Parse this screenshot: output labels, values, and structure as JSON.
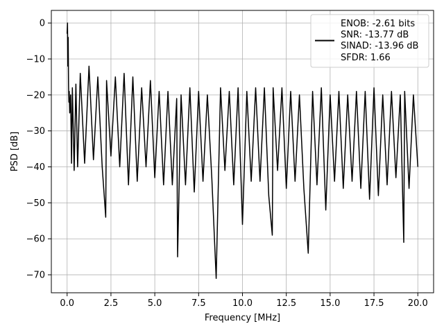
{
  "chart_data": {
    "type": "line",
    "title": "",
    "xlabel": "Frequency [MHz]",
    "ylabel": "PSD [dB]",
    "xlim": [
      -0.9,
      20.9
    ],
    "ylim": [
      -75,
      3.5
    ],
    "xticks": [
      0.0,
      2.5,
      5.0,
      7.5,
      10.0,
      12.5,
      15.0,
      17.5,
      20.0
    ],
    "xtick_labels": [
      "0.0",
      "2.5",
      "5.0",
      "7.5",
      "10.0",
      "12.5",
      "15.0",
      "17.5",
      "20.0"
    ],
    "yticks": [
      0,
      -10,
      -20,
      -30,
      -40,
      -50,
      -60,
      -70
    ],
    "ytick_labels": [
      "0",
      "−10",
      "−20",
      "−30",
      "−40",
      "−50",
      "−60",
      "−70"
    ],
    "grid": true,
    "legend_position": "top-right",
    "series": [
      {
        "color": "#000000",
        "x": [
          0.0,
          0.02,
          0.04,
          0.06,
          0.08,
          0.1,
          0.12,
          0.15,
          0.2,
          0.25,
          0.3,
          0.4,
          0.5,
          0.6,
          0.75,
          1.0,
          1.25,
          1.5,
          1.75,
          2.0,
          2.2,
          2.25,
          2.5,
          2.75,
          3.0,
          3.25,
          3.5,
          3.75,
          4.0,
          4.25,
          4.5,
          4.75,
          5.0,
          5.25,
          5.5,
          5.75,
          6.0,
          6.25,
          6.3,
          6.5,
          6.75,
          7.0,
          7.25,
          7.5,
          7.75,
          8.0,
          8.25,
          8.5,
          8.75,
          9.0,
          9.25,
          9.5,
          9.75,
          10.0,
          10.25,
          10.5,
          10.75,
          11.0,
          11.25,
          11.5,
          11.7,
          11.75,
          12.0,
          12.25,
          12.5,
          12.75,
          13.0,
          13.25,
          13.5,
          13.75,
          14.0,
          14.25,
          14.5,
          14.75,
          15.0,
          15.25,
          15.5,
          15.75,
          16.0,
          16.25,
          16.5,
          16.75,
          17.0,
          17.25,
          17.5,
          17.75,
          18.0,
          18.25,
          18.5,
          18.75,
          19.0,
          19.2,
          19.25,
          19.5,
          19.75,
          20.0
        ],
        "y": [
          -3,
          0,
          -12,
          -4,
          -17,
          -22,
          -19,
          -25,
          -20,
          -39,
          -18,
          -41,
          -17,
          -40,
          -14,
          -39,
          -12,
          -38,
          -15,
          -40,
          -54,
          -16,
          -37,
          -15,
          -40,
          -14,
          -45,
          -15,
          -44,
          -18,
          -40,
          -16,
          -43,
          -19,
          -45,
          -19,
          -45,
          -21,
          -65,
          -20,
          -45,
          -18,
          -47,
          -19,
          -44,
          -20,
          -43,
          -71,
          -18,
          -41,
          -19,
          -45,
          -18,
          -56,
          -19,
          -44,
          -18,
          -44,
          -18,
          -48,
          -59,
          -18,
          -41,
          -18,
          -46,
          -19,
          -44,
          -20,
          -46,
          -64,
          -19,
          -45,
          -18,
          -52,
          -20,
          -44,
          -19,
          -46,
          -20,
          -44,
          -19,
          -46,
          -19,
          -49,
          -18,
          -48,
          -20,
          -45,
          -19,
          -43,
          -20,
          -61,
          -19,
          -46,
          -20,
          -40
        ]
      }
    ],
    "legend": [
      "ENOB: -2.61 bits",
      "SNR: -13.77 dB",
      "SINAD: -13.96 dB",
      "SFDR: 1.66"
    ]
  }
}
